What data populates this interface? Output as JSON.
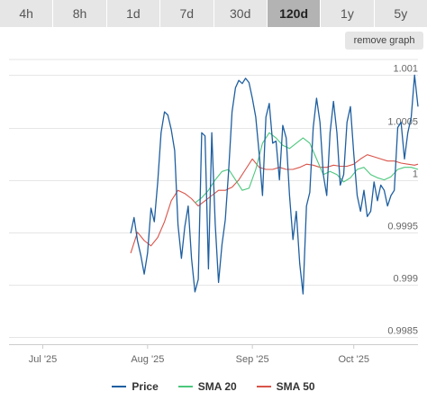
{
  "range_tabs": [
    {
      "label": "4h",
      "active": false
    },
    {
      "label": "8h",
      "active": false
    },
    {
      "label": "1d",
      "active": false
    },
    {
      "label": "7d",
      "active": false
    },
    {
      "label": "30d",
      "active": false
    },
    {
      "label": "120d",
      "active": true
    },
    {
      "label": "1y",
      "active": false
    },
    {
      "label": "5y",
      "active": false
    }
  ],
  "remove_graph_label": "remove graph",
  "colors": {
    "price": "#1f5fa0",
    "sma20": "#4cc77c",
    "sma50": "#d9544a",
    "grid": "#e6e6e6",
    "tab_bg": "#e6e6e6",
    "tab_active_bg": "#b3b3b3"
  },
  "chart_data": {
    "type": "line",
    "xlabel": "",
    "ylabel": "",
    "x_ticks": [
      "Jul '25",
      "Aug '25",
      "Sep '25",
      "Oct '25"
    ],
    "y_ticks": [
      "0.9985",
      "0.999",
      "0.9995",
      "1",
      "1.0005",
      "1.001"
    ],
    "ylim": [
      0.99843,
      1.00115
    ],
    "x_start": "2025-06-21",
    "x_end": "2025-10-20",
    "grid": true,
    "legend_position": "bottom",
    "series": [
      {
        "name": "Price",
        "points": [
          [
            "2025-07-27",
            0.99949
          ],
          [
            "2025-07-28",
            0.99964
          ],
          [
            "2025-07-29",
            0.99942
          ],
          [
            "2025-07-30",
            0.99928
          ],
          [
            "2025-07-31",
            0.9991
          ],
          [
            "2025-08-01",
            0.9993
          ],
          [
            "2025-08-02",
            0.99973
          ],
          [
            "2025-08-03",
            0.9996
          ],
          [
            "2025-08-04",
            0.99998
          ],
          [
            "2025-08-05",
            1.00045
          ],
          [
            "2025-08-06",
            1.00065
          ],
          [
            "2025-08-07",
            1.00062
          ],
          [
            "2025-08-08",
            1.00048
          ],
          [
            "2025-08-09",
            1.00028
          ],
          [
            "2025-08-10",
            0.99957
          ],
          [
            "2025-08-11",
            0.99925
          ],
          [
            "2025-08-12",
            0.99955
          ],
          [
            "2025-08-13",
            0.99975
          ],
          [
            "2025-08-14",
            0.99925
          ],
          [
            "2025-08-15",
            0.99893
          ],
          [
            "2025-08-16",
            0.99905
          ],
          [
            "2025-08-17",
            1.00045
          ],
          [
            "2025-08-18",
            1.00042
          ],
          [
            "2025-08-19",
            0.99915
          ],
          [
            "2025-08-20",
            1.00045
          ],
          [
            "2025-08-21",
            0.99958
          ],
          [
            "2025-08-22",
            0.99902
          ],
          [
            "2025-08-23",
            0.99938
          ],
          [
            "2025-08-24",
            0.99962
          ],
          [
            "2025-08-25",
            1.0001
          ],
          [
            "2025-08-26",
            1.00065
          ],
          [
            "2025-08-27",
            1.00088
          ],
          [
            "2025-08-28",
            1.00095
          ],
          [
            "2025-08-29",
            1.00092
          ],
          [
            "2025-08-30",
            1.00097
          ],
          [
            "2025-08-31",
            1.00093
          ],
          [
            "2025-09-01",
            1.00078
          ],
          [
            "2025-09-02",
            1.0006
          ],
          [
            "2025-09-03",
            1.00025
          ],
          [
            "2025-09-04",
            0.99985
          ],
          [
            "2025-09-05",
            1.0006
          ],
          [
            "2025-09-06",
            1.00073
          ],
          [
            "2025-09-07",
            1.00035
          ],
          [
            "2025-09-08",
            1.00037
          ],
          [
            "2025-09-09",
            1.0
          ],
          [
            "2025-09-10",
            1.00052
          ],
          [
            "2025-09-11",
            1.0004
          ],
          [
            "2025-09-12",
            0.99985
          ],
          [
            "2025-09-13",
            0.99943
          ],
          [
            "2025-09-14",
            0.9997
          ],
          [
            "2025-09-15",
            0.9992
          ],
          [
            "2025-09-16",
            0.99891
          ],
          [
            "2025-09-17",
            0.99975
          ],
          [
            "2025-09-18",
            0.99988
          ],
          [
            "2025-09-19",
            1.0005
          ],
          [
            "2025-09-20",
            1.00078
          ],
          [
            "2025-09-21",
            1.00055
          ],
          [
            "2025-09-22",
            1.00005
          ],
          [
            "2025-09-23",
            0.99985
          ],
          [
            "2025-09-24",
            1.00045
          ],
          [
            "2025-09-25",
            1.00075
          ],
          [
            "2025-09-26",
            1.00045
          ],
          [
            "2025-09-27",
            0.99995
          ],
          [
            "2025-09-28",
            1.00005
          ],
          [
            "2025-09-29",
            1.00055
          ],
          [
            "2025-09-30",
            1.0007
          ],
          [
            "2025-10-01",
            1.00025
          ],
          [
            "2025-10-02",
            0.99985
          ],
          [
            "2025-10-03",
            0.9997
          ],
          [
            "2025-10-04",
            0.9999
          ],
          [
            "2025-10-05",
            0.99965
          ],
          [
            "2025-10-06",
            0.9997
          ],
          [
            "2025-10-07",
            0.99998
          ],
          [
            "2025-10-08",
            0.9998
          ],
          [
            "2025-10-09",
            0.99995
          ],
          [
            "2025-10-10",
            0.9999
          ],
          [
            "2025-10-11",
            0.99975
          ],
          [
            "2025-10-12",
            0.99985
          ],
          [
            "2025-10-13",
            0.9999
          ],
          [
            "2025-10-14",
            1.0005
          ],
          [
            "2025-10-15",
            1.00055
          ],
          [
            "2025-10-16",
            1.0002
          ],
          [
            "2025-10-17",
            1.00045
          ],
          [
            "2025-10-18",
            1.0006
          ],
          [
            "2025-10-19",
            1.001
          ],
          [
            "2025-10-20",
            1.0007
          ]
        ]
      },
      {
        "name": "SMA 20",
        "points": [
          [
            "2025-08-15",
            0.99978
          ],
          [
            "2025-08-17",
            0.99983
          ],
          [
            "2025-08-19",
            0.9999
          ],
          [
            "2025-08-21",
            1.0
          ],
          [
            "2025-08-23",
            1.00008
          ],
          [
            "2025-08-25",
            1.0001
          ],
          [
            "2025-08-27",
            1.0
          ],
          [
            "2025-08-29",
            0.9999
          ],
          [
            "2025-08-31",
            0.99992
          ],
          [
            "2025-09-02",
            1.0001
          ],
          [
            "2025-09-04",
            1.00035
          ],
          [
            "2025-09-06",
            1.00045
          ],
          [
            "2025-09-08",
            1.0004
          ],
          [
            "2025-09-10",
            1.00033
          ],
          [
            "2025-09-12",
            1.0003
          ],
          [
            "2025-09-14",
            1.00035
          ],
          [
            "2025-09-16",
            1.0004
          ],
          [
            "2025-09-18",
            1.00035
          ],
          [
            "2025-09-20",
            1.0002
          ],
          [
            "2025-09-22",
            1.00005
          ],
          [
            "2025-09-24",
            1.00008
          ],
          [
            "2025-09-26",
            1.00005
          ],
          [
            "2025-09-28",
            0.99998
          ],
          [
            "2025-09-30",
            1.00002
          ],
          [
            "2025-10-02",
            1.0001
          ],
          [
            "2025-10-04",
            1.00012
          ],
          [
            "2025-10-06",
            1.00005
          ],
          [
            "2025-10-08",
            1.00002
          ],
          [
            "2025-10-10",
            1.0
          ],
          [
            "2025-10-12",
            1.00003
          ],
          [
            "2025-10-14",
            1.0001
          ],
          [
            "2025-10-16",
            1.00012
          ],
          [
            "2025-10-18",
            1.00012
          ],
          [
            "2025-10-20",
            1.0001
          ]
        ]
      },
      {
        "name": "SMA 50",
        "points": [
          [
            "2025-07-27",
            0.9993
          ],
          [
            "2025-07-29",
            0.9995
          ],
          [
            "2025-07-31",
            0.99942
          ],
          [
            "2025-08-02",
            0.99937
          ],
          [
            "2025-08-04",
            0.99945
          ],
          [
            "2025-08-06",
            0.9996
          ],
          [
            "2025-08-08",
            0.9998
          ],
          [
            "2025-08-10",
            0.9999
          ],
          [
            "2025-08-12",
            0.99987
          ],
          [
            "2025-08-14",
            0.99982
          ],
          [
            "2025-08-16",
            0.99975
          ],
          [
            "2025-08-18",
            0.9998
          ],
          [
            "2025-08-20",
            0.99985
          ],
          [
            "2025-08-22",
            0.9999
          ],
          [
            "2025-08-24",
            0.9999
          ],
          [
            "2025-08-26",
            0.99993
          ],
          [
            "2025-08-28",
            1.0
          ],
          [
            "2025-08-30",
            1.0001
          ],
          [
            "2025-09-01",
            1.0002
          ],
          [
            "2025-09-03",
            1.00012
          ],
          [
            "2025-09-05",
            1.0001
          ],
          [
            "2025-09-07",
            1.0001
          ],
          [
            "2025-09-09",
            1.00012
          ],
          [
            "2025-09-11",
            1.0001
          ],
          [
            "2025-09-13",
            1.0001
          ],
          [
            "2025-09-15",
            1.00012
          ],
          [
            "2025-09-17",
            1.00015
          ],
          [
            "2025-09-19",
            1.00014
          ],
          [
            "2025-09-21",
            1.00012
          ],
          [
            "2025-09-23",
            1.00012
          ],
          [
            "2025-09-25",
            1.00014
          ],
          [
            "2025-09-27",
            1.00013
          ],
          [
            "2025-09-29",
            1.00013
          ],
          [
            "2025-10-01",
            1.00015
          ],
          [
            "2025-10-03",
            1.0002
          ],
          [
            "2025-10-05",
            1.00024
          ],
          [
            "2025-10-07",
            1.00022
          ],
          [
            "2025-10-09",
            1.0002
          ],
          [
            "2025-10-11",
            1.00018
          ],
          [
            "2025-10-13",
            1.00018
          ],
          [
            "2025-10-15",
            1.00016
          ],
          [
            "2025-10-17",
            1.00015
          ],
          [
            "2025-10-19",
            1.00014
          ],
          [
            "2025-10-20",
            1.00015
          ]
        ]
      }
    ]
  }
}
